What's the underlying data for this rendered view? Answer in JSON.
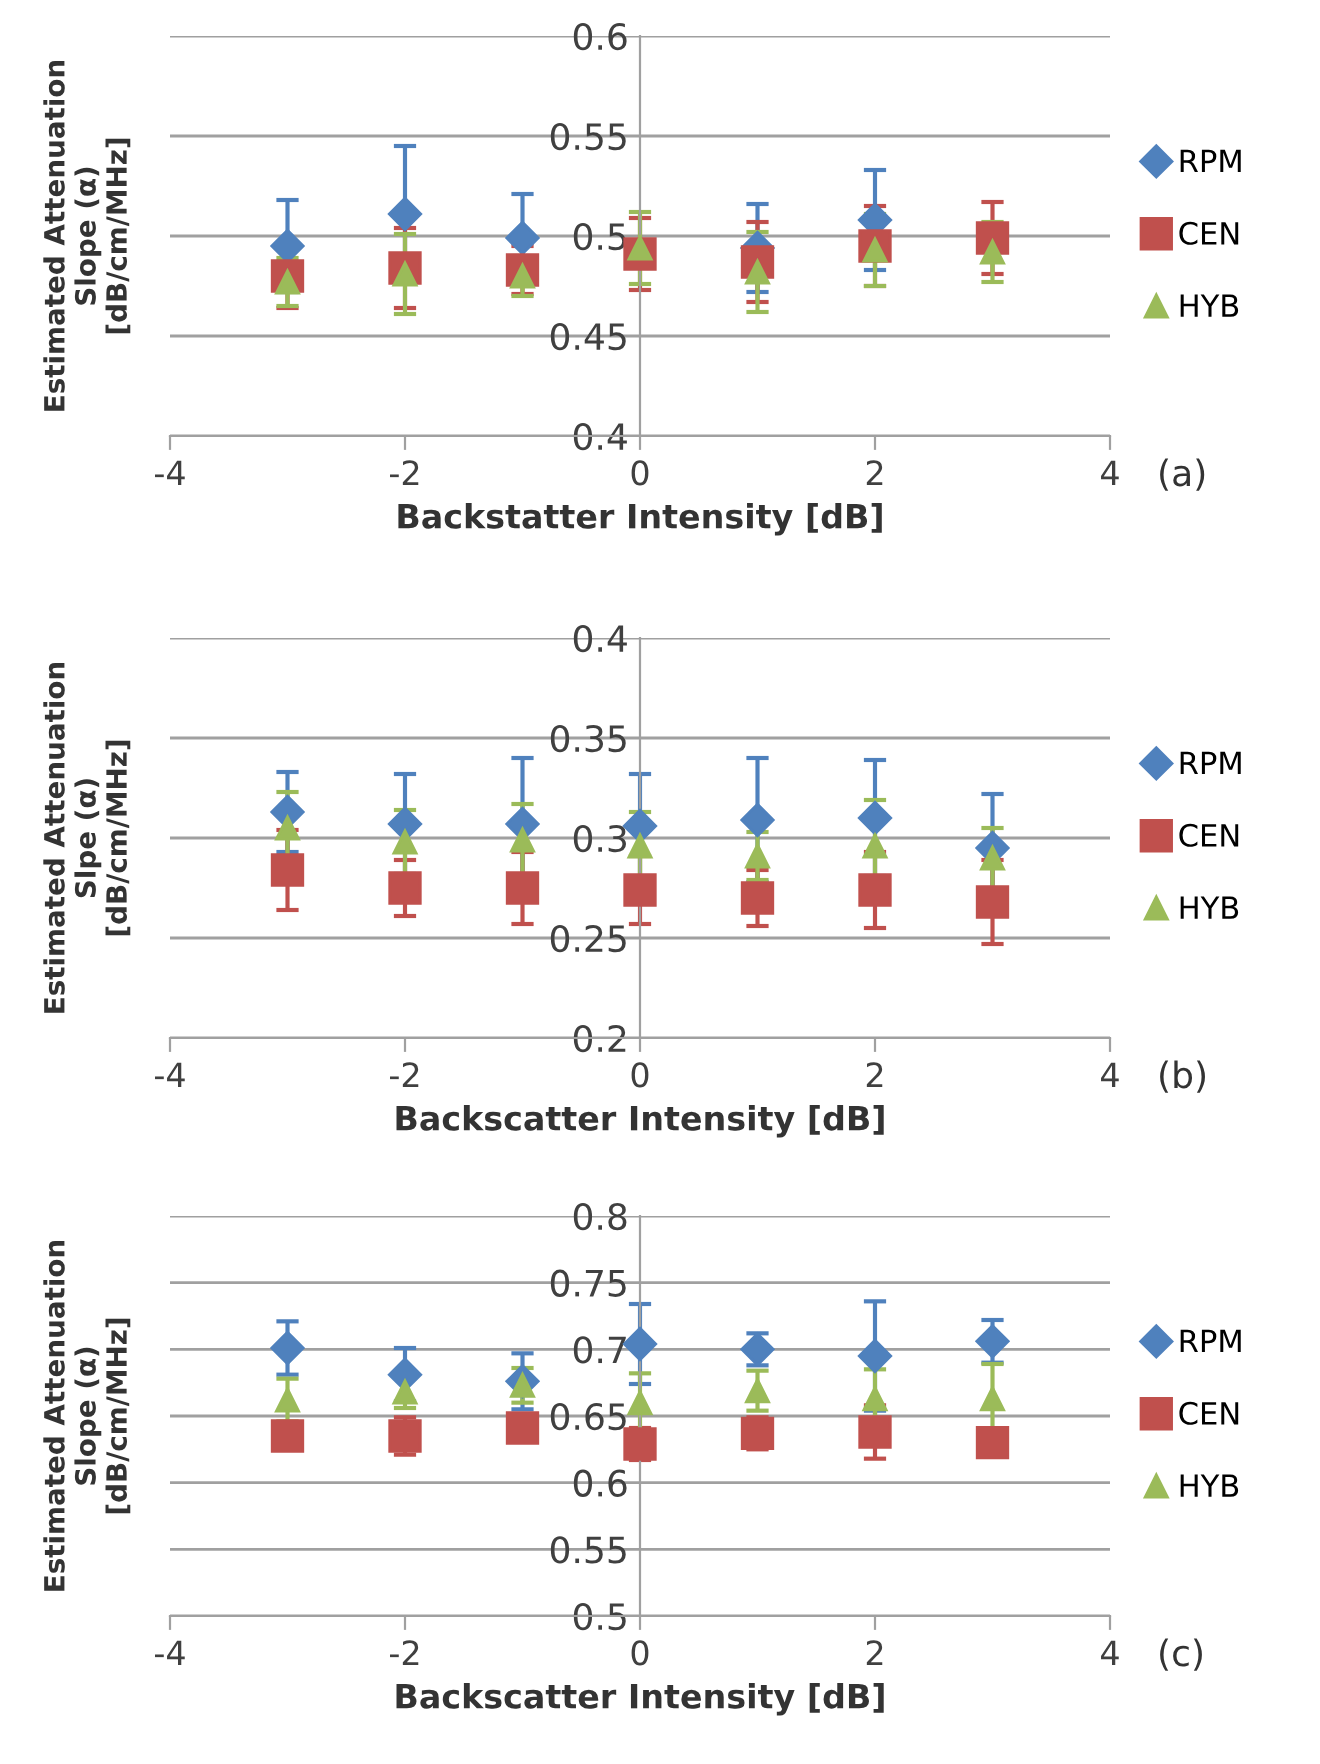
{
  "chart_data": [
    {
      "type": "scatter",
      "xlabel": "Backstatter Intensity [dB]",
      "ylabel": "Estimated Attenuation\nSlope (α)\n[dB/cm/MHz]",
      "annotations": [
        "(a)"
      ],
      "xlim": [
        -4,
        4
      ],
      "xticks": [
        -4,
        -2,
        0,
        2,
        4
      ],
      "ylim": [
        0.4,
        0.6
      ],
      "yticks": [
        0.4,
        0.45,
        0.5,
        0.55,
        0.6
      ],
      "grid": "y",
      "legend": "right",
      "x": [
        -3,
        -2,
        -1,
        0,
        1,
        2,
        3
      ],
      "series": [
        {
          "name": "RPM",
          "color": "#4f81bd",
          "marker": "diamond",
          "values": [
            0.495,
            0.511,
            0.499,
            null,
            0.494,
            0.508,
            null
          ],
          "errors": [
            0.023,
            0.034,
            0.022,
            null,
            0.022,
            0.025,
            null
          ]
        },
        {
          "name": "CEN",
          "color": "#c0504d",
          "marker": "square",
          "values": [
            0.48,
            0.484,
            0.483,
            0.491,
            0.487,
            0.495,
            0.499
          ],
          "errors": [
            0.016,
            0.02,
            0.012,
            0.018,
            0.02,
            0.02,
            0.018
          ]
        },
        {
          "name": "HYB",
          "color": "#9bbb59",
          "marker": "triangle",
          "values": [
            0.477,
            0.481,
            0.48,
            0.494,
            0.482,
            0.493,
            0.492
          ],
          "errors": [
            0.012,
            0.02,
            0.01,
            0.018,
            0.02,
            0.018,
            0.015
          ]
        }
      ]
    },
    {
      "type": "scatter",
      "xlabel": "Backscatter Intensity [dB]",
      "ylabel": "Estimated Attenuation\nSlpe (α)\n[dB/cm/MHz]",
      "annotations": [
        "(b)"
      ],
      "xlim": [
        -4,
        4
      ],
      "xticks": [
        -4,
        -2,
        0,
        2,
        4
      ],
      "ylim": [
        0.2,
        0.4
      ],
      "yticks": [
        0.2,
        0.25,
        0.3,
        0.35,
        0.4
      ],
      "grid": "y",
      "legend": "right",
      "x": [
        -3,
        -2,
        -1,
        0,
        1,
        2,
        3
      ],
      "series": [
        {
          "name": "RPM",
          "color": "#4f81bd",
          "marker": "diamond",
          "values": [
            0.313,
            0.307,
            0.307,
            0.306,
            0.309,
            0.31,
            0.295
          ],
          "errors": [
            0.02,
            0.025,
            0.033,
            0.026,
            0.031,
            0.029,
            0.027
          ]
        },
        {
          "name": "CEN",
          "color": "#c0504d",
          "marker": "square",
          "values": [
            0.284,
            0.275,
            0.275,
            0.274,
            0.27,
            0.274,
            0.268
          ],
          "errors": [
            0.02,
            0.014,
            0.018,
            0.017,
            0.014,
            0.019,
            0.021
          ]
        },
        {
          "name": "HYB",
          "color": "#9bbb59",
          "marker": "triangle",
          "values": [
            0.305,
            0.298,
            0.299,
            0.296,
            0.291,
            0.296,
            0.29
          ],
          "errors": [
            0.018,
            0.016,
            0.018,
            0.017,
            0.012,
            0.023,
            0.015
          ]
        }
      ]
    },
    {
      "type": "scatter",
      "xlabel": "Backscatter Intensity [dB]",
      "ylabel": "Estimated Attenuation\nSlope (α)\n[dB/cm/MHz]",
      "annotations": [
        "(c)"
      ],
      "xlim": [
        -4,
        4
      ],
      "xticks": [
        -4,
        -2,
        0,
        2,
        4
      ],
      "ylim": [
        0.5,
        0.8
      ],
      "yticks": [
        0.5,
        0.55,
        0.6,
        0.65,
        0.7,
        0.75,
        0.8
      ],
      "grid": "y",
      "legend": "right",
      "x": [
        -3,
        -2,
        -1,
        0,
        1,
        2,
        3
      ],
      "series": [
        {
          "name": "RPM",
          "color": "#4f81bd",
          "marker": "diamond",
          "values": [
            0.701,
            0.681,
            0.676,
            0.704,
            0.7,
            0.695,
            0.706
          ],
          "errors": [
            0.02,
            0.02,
            0.021,
            0.03,
            0.012,
            0.041,
            0.016
          ]
        },
        {
          "name": "CEN",
          "color": "#c0504d",
          "marker": "square",
          "values": [
            0.635,
            0.635,
            0.641,
            0.629,
            0.637,
            0.638,
            0.63
          ],
          "errors": [
            0.01,
            0.014,
            0.01,
            0.012,
            0.012,
            0.02,
            0.01
          ]
        },
        {
          "name": "HYB",
          "color": "#9bbb59",
          "marker": "triangle",
          "values": [
            0.662,
            0.668,
            0.673,
            0.66,
            0.669,
            0.663,
            0.663
          ],
          "errors": [
            0.016,
            0.012,
            0.013,
            0.022,
            0.015,
            0.022,
            0.026
          ]
        }
      ]
    }
  ]
}
